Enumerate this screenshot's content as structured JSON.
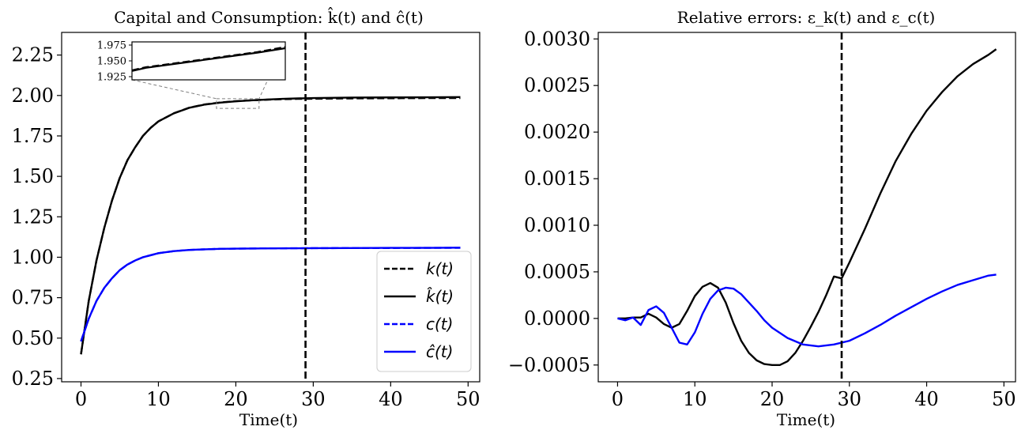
{
  "figure": {
    "charts": [
      {
        "title": "Capital and Consumption: k̂(t) and ĉ(t)",
        "xlabel": "Time(t)"
      },
      {
        "title": "Relative errors: ε_k(t) and ε_c(t)",
        "xlabel": "Time(t)"
      }
    ]
  },
  "chart_data": [
    {
      "type": "line",
      "title": "Capital and Consumption: k̂(t) and ĉ(t)",
      "xlabel": "Time(t)",
      "ylabel": "",
      "xlim": [
        -2.5,
        51.5
      ],
      "ylim": [
        0.23,
        2.39
      ],
      "x_ticks": [
        0,
        10,
        20,
        30,
        40,
        50
      ],
      "x_tick_labels": [
        "0",
        "10",
        "20",
        "30",
        "40",
        "50"
      ],
      "y_ticks": [
        0.25,
        0.5,
        0.75,
        1.0,
        1.25,
        1.5,
        1.75,
        2.0,
        2.25
      ],
      "y_tick_labels": [
        "0.25",
        "0.50",
        "0.75",
        "1.00",
        "1.25",
        "1.50",
        "1.75",
        "2.00",
        "2.25"
      ],
      "vline": {
        "x": 29,
        "style": "dashed",
        "color": "#000000"
      },
      "legend": {
        "placement": "lower right",
        "entries": [
          {
            "label": "k(t)",
            "color": "#000000",
            "style": "dashed"
          },
          {
            "label": "k̂(t)",
            "color": "#000000",
            "style": "solid"
          },
          {
            "label": "c(t)",
            "color": "#0000ff",
            "style": "dashed"
          },
          {
            "label": "ĉ(t)",
            "color": "#0000ff",
            "style": "solid"
          }
        ]
      },
      "series": [
        {
          "name": "k(t)",
          "color": "#000000",
          "style": "dashed",
          "x": [
            0,
            1,
            2,
            3,
            4,
            5,
            6,
            7,
            8,
            9,
            10,
            12,
            14,
            16,
            18,
            20,
            22,
            24,
            26,
            28,
            30,
            35,
            40,
            45,
            49
          ],
          "y": [
            0.4,
            0.73,
            0.98,
            1.18,
            1.35,
            1.49,
            1.6,
            1.68,
            1.75,
            1.8,
            1.84,
            1.89,
            1.925,
            1.945,
            1.957,
            1.965,
            1.97,
            1.974,
            1.977,
            1.979,
            1.98,
            1.982,
            1.983,
            1.984,
            1.984
          ]
        },
        {
          "name": "k̂(t)",
          "color": "#000000",
          "style": "solid",
          "x": [
            0,
            1,
            2,
            3,
            4,
            5,
            6,
            7,
            8,
            9,
            10,
            12,
            14,
            16,
            18,
            20,
            22,
            24,
            26,
            28,
            30,
            35,
            40,
            45,
            49
          ],
          "y": [
            0.4,
            0.73,
            0.98,
            1.18,
            1.35,
            1.49,
            1.6,
            1.68,
            1.75,
            1.8,
            1.84,
            1.89,
            1.924,
            1.944,
            1.956,
            1.964,
            1.97,
            1.975,
            1.979,
            1.982,
            1.984,
            1.987,
            1.988,
            1.989,
            1.99
          ]
        },
        {
          "name": "c(t)",
          "color": "#0000ff",
          "style": "dashed",
          "x": [
            0,
            1,
            2,
            3,
            4,
            5,
            6,
            7,
            8,
            10,
            12,
            14,
            16,
            18,
            20,
            25,
            30,
            35,
            40,
            45,
            49
          ],
          "y": [
            0.48,
            0.62,
            0.73,
            0.81,
            0.87,
            0.92,
            0.955,
            0.98,
            1.0,
            1.025,
            1.038,
            1.045,
            1.049,
            1.052,
            1.053,
            1.055,
            1.056,
            1.057,
            1.057,
            1.058,
            1.058
          ]
        },
        {
          "name": "ĉ(t)",
          "color": "#0000ff",
          "style": "solid",
          "x": [
            0,
            1,
            2,
            3,
            4,
            5,
            6,
            7,
            8,
            10,
            12,
            14,
            16,
            18,
            20,
            25,
            30,
            35,
            40,
            45,
            49
          ],
          "y": [
            0.48,
            0.62,
            0.73,
            0.81,
            0.87,
            0.92,
            0.955,
            0.98,
            1.0,
            1.025,
            1.038,
            1.045,
            1.049,
            1.052,
            1.053,
            1.055,
            1.056,
            1.057,
            1.058,
            1.058,
            1.059
          ]
        }
      ],
      "inset": {
        "xlim": [
          17.5,
          23
        ],
        "ylim": [
          1.92,
          1.98
        ],
        "y_ticks": [
          1.925,
          1.95,
          1.975
        ],
        "y_tick_labels": [
          "1.925",
          "1.950",
          "1.975"
        ],
        "series": [
          {
            "name": "k(t)",
            "color": "#000000",
            "style": "dashed",
            "x": [
              17.5,
              18,
              19,
              20,
              21,
              22,
              23
            ],
            "y": [
              1.935,
              1.94,
              1.946,
              1.952,
              1.958,
              1.964,
              1.972
            ]
          },
          {
            "name": "k̂(t)",
            "color": "#000000",
            "style": "solid",
            "x": [
              17.5,
              18,
              19,
              20,
              21,
              22,
              23
            ],
            "y": [
              1.934,
              1.939,
              1.945,
              1.951,
              1.957,
              1.963,
              1.97
            ]
          }
        ]
      }
    },
    {
      "type": "line",
      "title": "Relative errors: ε_k(t) and ε_c(t)",
      "xlabel": "Time(t)",
      "ylabel": "",
      "xlim": [
        -2.5,
        51.5
      ],
      "ylim": [
        -0.00068,
        0.00307
      ],
      "x_ticks": [
        0,
        10,
        20,
        30,
        40,
        50
      ],
      "x_tick_labels": [
        "0",
        "10",
        "20",
        "30",
        "40",
        "50"
      ],
      "y_ticks": [
        -0.0005,
        0.0,
        0.0005,
        0.001,
        0.0015,
        0.002,
        0.0025,
        0.003
      ],
      "y_tick_labels": [
        "−0.0005",
        "0.0000",
        "0.0005",
        "0.0010",
        "0.0015",
        "0.0020",
        "0.0025",
        "0.0030"
      ],
      "vline": {
        "x": 29,
        "style": "dashed",
        "color": "#000000"
      },
      "series": [
        {
          "name": "",
          "color": "#000000",
          "style": "solid",
          "x": [
            0,
            1,
            2,
            3,
            4,
            5,
            6,
            7,
            8,
            9,
            10,
            11,
            12,
            13,
            14,
            15,
            16,
            17,
            18,
            19,
            20,
            21,
            22,
            23,
            24,
            25,
            26,
            27,
            28,
            29,
            30,
            32,
            34,
            36,
            38,
            40,
            42,
            44,
            46,
            48,
            49
          ],
          "y": [
            0.0,
            0.0,
            1e-05,
            1e-05,
            5e-05,
            1e-05,
            -6e-05,
            -0.0001,
            -6e-05,
            8e-05,
            0.00024,
            0.00034,
            0.00038,
            0.00033,
            0.00017,
            -5e-05,
            -0.00024,
            -0.00037,
            -0.00045,
            -0.00049,
            -0.0005,
            -0.0005,
            -0.00046,
            -0.00037,
            -0.00024,
            -9e-05,
            7e-05,
            0.00025,
            0.00045,
            0.00043,
            0.0006,
            0.00096,
            0.00134,
            0.00169,
            0.00198,
            0.00223,
            0.00243,
            0.0026,
            0.00273,
            0.00283,
            0.00289
          ]
        },
        {
          "name": "",
          "color": "#0000ff",
          "style": "solid",
          "x": [
            0,
            1,
            2,
            3,
            4,
            5,
            6,
            7,
            8,
            9,
            10,
            11,
            12,
            13,
            14,
            15,
            16,
            17,
            18,
            19,
            20,
            22,
            24,
            26,
            28,
            30,
            32,
            34,
            36,
            38,
            40,
            42,
            44,
            46,
            48,
            49
          ],
          "y": [
            0.0,
            -2e-05,
            1e-05,
            -7e-05,
            9e-05,
            0.00013,
            6e-05,
            -0.0001,
            -0.00026,
            -0.00028,
            -0.00015,
            5e-05,
            0.00021,
            0.0003,
            0.00033,
            0.00032,
            0.00026,
            0.00017,
            8e-05,
            -2e-05,
            -0.0001,
            -0.00021,
            -0.00028,
            -0.0003,
            -0.00028,
            -0.00024,
            -0.00016,
            -7e-05,
            3e-05,
            0.00012,
            0.00021,
            0.00029,
            0.00036,
            0.00041,
            0.00046,
            0.00047
          ]
        }
      ]
    }
  ]
}
